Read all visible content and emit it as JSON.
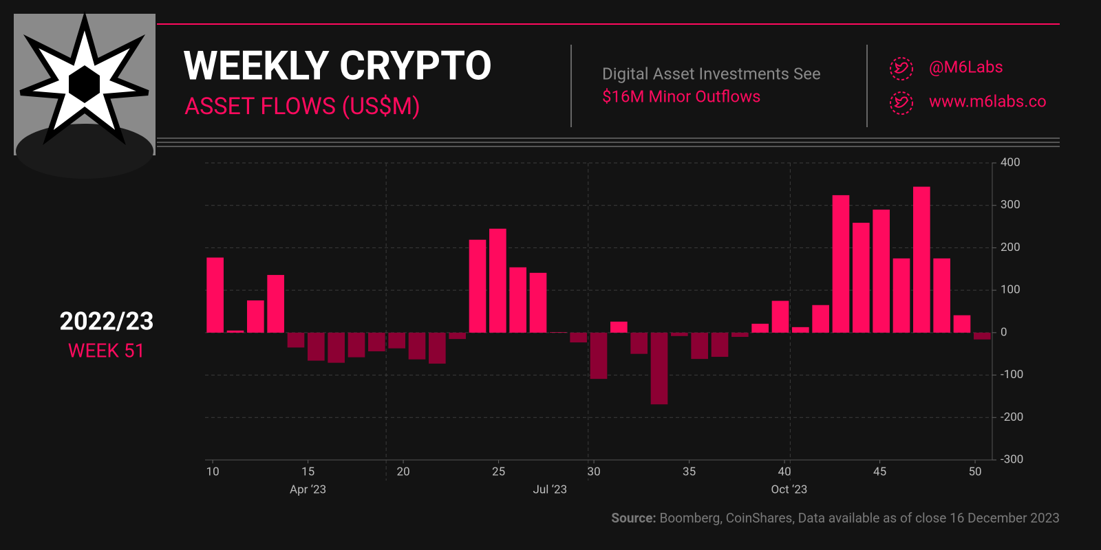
{
  "header": {
    "title": "WEEKLY CRYPTO",
    "subtitle": "ASSET FLOWS (US$M)",
    "headline": "Digital Asset Investments See",
    "highlight": "$16M Minor Outflows",
    "twitter": "@M6Labs",
    "website": "www.m6labs.co"
  },
  "period": {
    "year": "2022/23",
    "week": "WEEK 51"
  },
  "footer": {
    "source_label": "Source:",
    "source": "Boomberg, CoinShares, Data available as of close 16 December 2023"
  },
  "chart_data": {
    "type": "bar",
    "values": [
      177,
      5,
      76,
      136,
      -35,
      -66,
      -71,
      -58,
      -44,
      -37,
      -63,
      -73,
      -15,
      219,
      245,
      154,
      141,
      1,
      -23,
      -109,
      26,
      -50,
      -169,
      -8,
      -62,
      -57,
      -10,
      21,
      75,
      13,
      65,
      324,
      259,
      290,
      175,
      344,
      175,
      41,
      -16
    ],
    "colors": {
      "positive": "#ff0a5e",
      "negative": "#8c0033"
    },
    "ylim": [
      -300,
      400
    ],
    "yticks": [
      -300,
      -200,
      -100,
      0,
      100,
      200,
      300,
      400
    ],
    "xlim": [
      9.6,
      50.9
    ],
    "xticks": [
      10,
      15,
      20,
      25,
      30,
      35,
      40,
      45,
      50
    ],
    "month_ticks": [
      {
        "value": 15,
        "label": "Apr ‘23"
      },
      {
        "value": 27.7,
        "label": "Jul ‘23"
      },
      {
        "value": 40.25,
        "label": "Oct ‘23"
      }
    ],
    "month_lines": [
      19.1,
      29.7,
      40.3
    ],
    "grid": true
  }
}
